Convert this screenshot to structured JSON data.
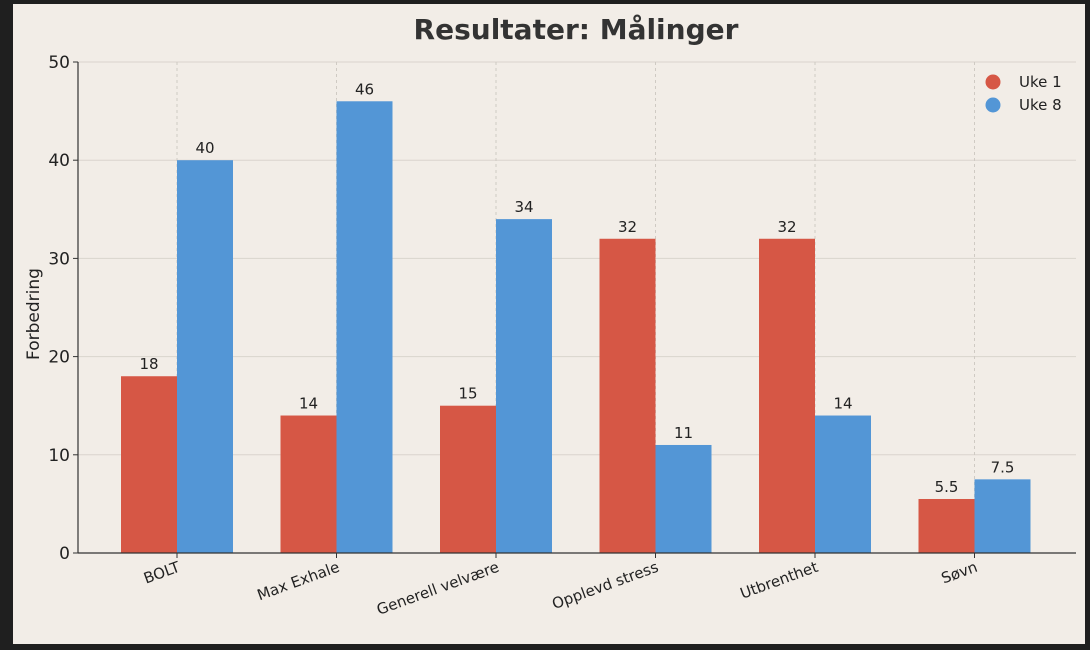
{
  "chart_data": {
    "type": "bar",
    "title": "Resultater: Målinger",
    "xlabel": "",
    "ylabel": "Forbedring",
    "categories": [
      "BOLT",
      "Max Exhale",
      "Generell velvære",
      "Opplevd stress",
      "Utbrenthet",
      "Søvn"
    ],
    "series": [
      {
        "name": "Uke 1",
        "color": "#d65745",
        "values": [
          18,
          14,
          15,
          32,
          32,
          5.5
        ]
      },
      {
        "name": "Uke 8",
        "color": "#5396d6",
        "values": [
          40,
          46,
          34,
          11,
          14,
          7.5
        ]
      }
    ],
    "ylim": [
      0,
      50
    ],
    "yticks": [
      0,
      10,
      20,
      30,
      40,
      50
    ],
    "grid": true,
    "legend": "top-right",
    "data_labels": true
  }
}
